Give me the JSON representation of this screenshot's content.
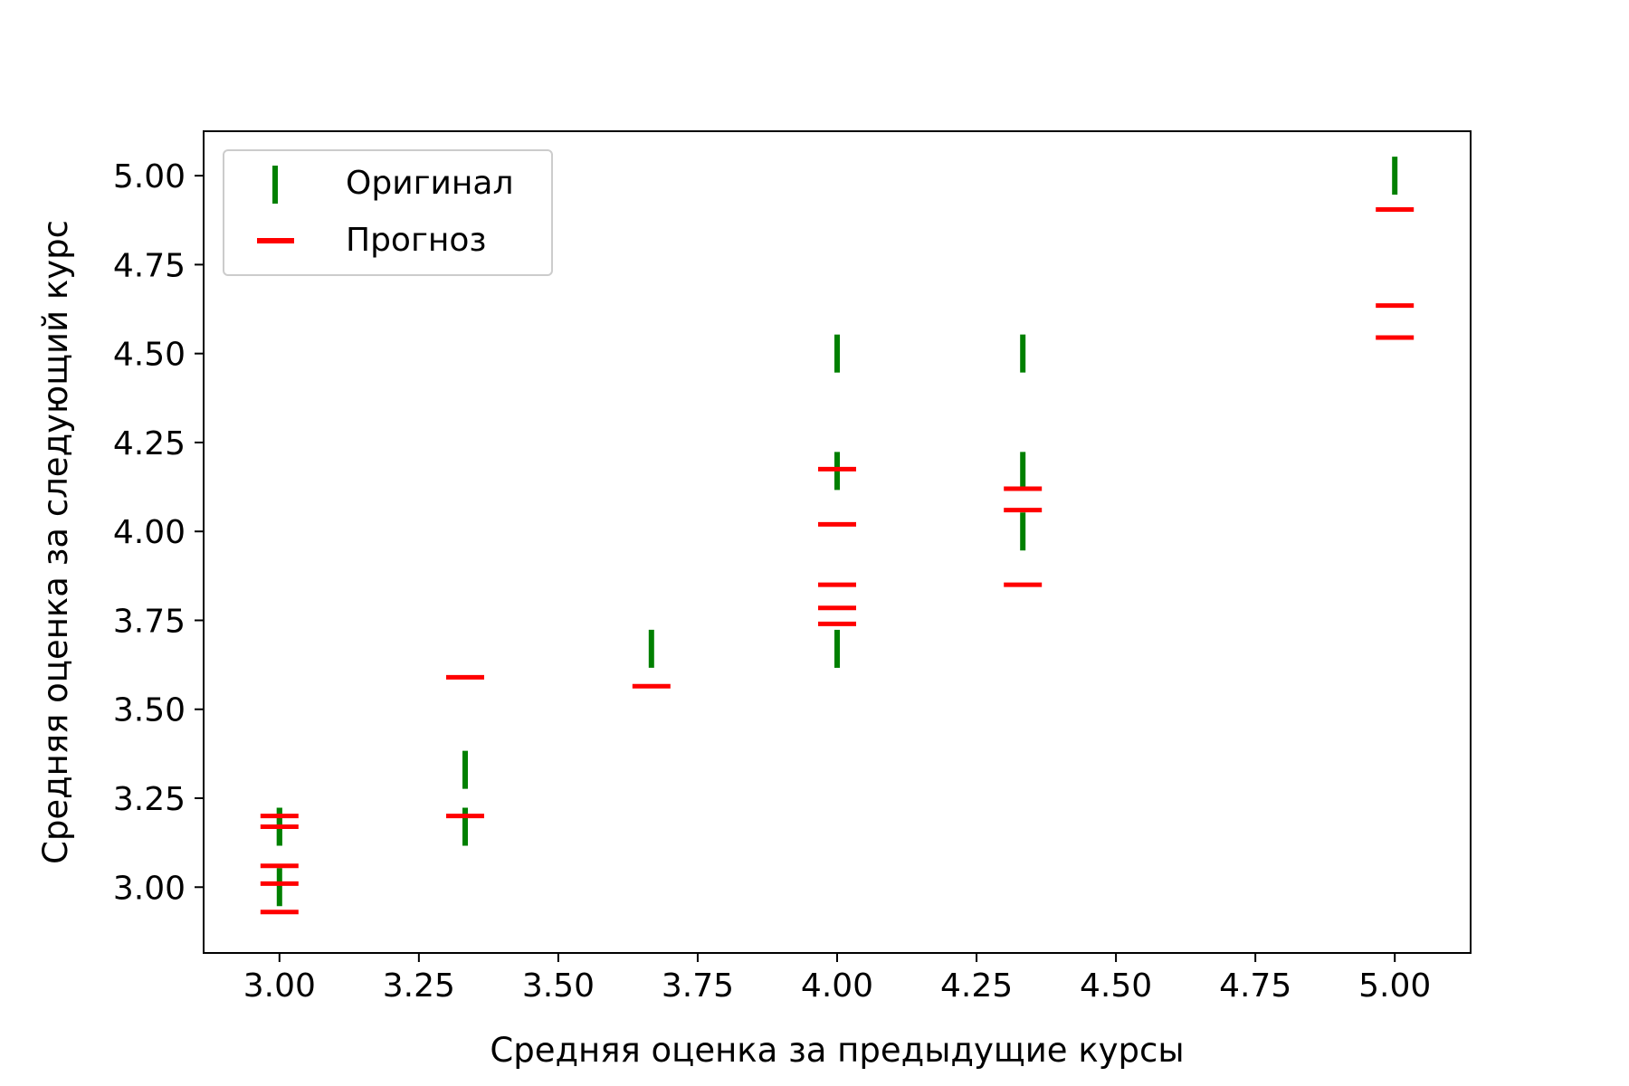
{
  "chart_data": {
    "type": "scatter",
    "title": "",
    "xlabel": "Средняя оценка за предыдущие курсы",
    "ylabel": "Средняя оценка за следующий курс",
    "xlim": [
      2.864,
      5.136
    ],
    "ylim": [
      2.815,
      5.125
    ],
    "x_ticks": [
      3.0,
      3.25,
      3.5,
      3.75,
      4.0,
      4.25,
      4.5,
      4.75,
      5.0
    ],
    "x_tick_labels": [
      "3.00",
      "3.25",
      "3.50",
      "3.75",
      "4.00",
      "4.25",
      "4.50",
      "4.75",
      "5.00"
    ],
    "y_ticks": [
      3.0,
      3.25,
      3.5,
      3.75,
      4.0,
      4.25,
      4.5,
      4.75,
      5.0
    ],
    "y_tick_labels": [
      "3.00",
      "3.25",
      "3.50",
      "3.75",
      "4.00",
      "4.25",
      "4.50",
      "4.75",
      "5.00"
    ],
    "grid": false,
    "legend_position": "top-left",
    "series": [
      {
        "name": "Оригинал",
        "marker": "vline",
        "color": "#008000",
        "points": [
          [
            3.0,
            3.0
          ],
          [
            3.0,
            3.17
          ],
          [
            3.0,
            3.17
          ],
          [
            3.333,
            3.17
          ],
          [
            3.333,
            3.33
          ],
          [
            3.667,
            3.67
          ],
          [
            4.0,
            3.67
          ],
          [
            4.0,
            4.17
          ],
          [
            4.0,
            4.5
          ],
          [
            4.333,
            4.0
          ],
          [
            4.333,
            4.17
          ],
          [
            4.333,
            4.5
          ],
          [
            5.0,
            5.0
          ]
        ]
      },
      {
        "name": "Прогноз",
        "marker": "hline",
        "color": "#ff0000",
        "points": [
          [
            3.0,
            2.93
          ],
          [
            3.0,
            3.01
          ],
          [
            3.0,
            3.06
          ],
          [
            3.0,
            3.17
          ],
          [
            3.0,
            3.2
          ],
          [
            3.333,
            3.2
          ],
          [
            3.333,
            3.59
          ],
          [
            3.667,
            3.565
          ],
          [
            4.0,
            3.74
          ],
          [
            4.0,
            3.785
          ],
          [
            4.0,
            3.85
          ],
          [
            4.0,
            4.02
          ],
          [
            4.0,
            4.175
          ],
          [
            4.333,
            3.85
          ],
          [
            4.333,
            4.06
          ],
          [
            4.333,
            4.12
          ],
          [
            5.0,
            4.545
          ],
          [
            5.0,
            4.635
          ],
          [
            5.0,
            4.905
          ]
        ]
      }
    ]
  }
}
